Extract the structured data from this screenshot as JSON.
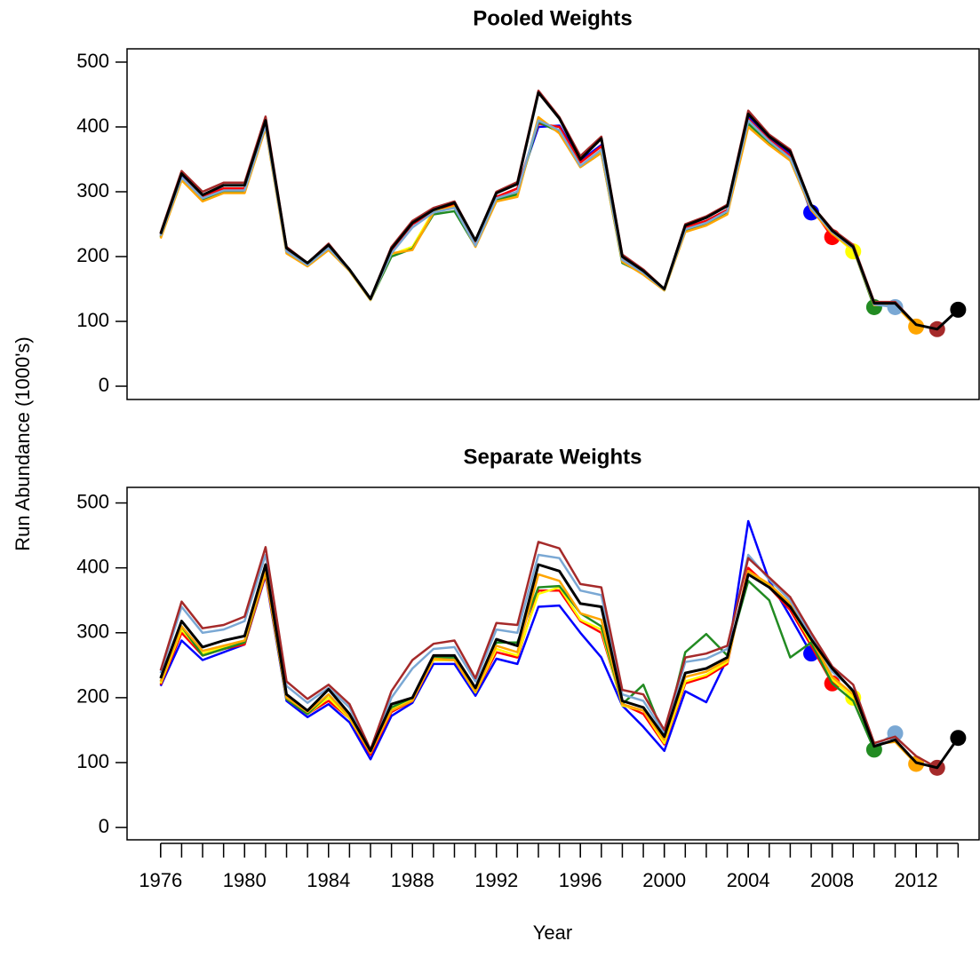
{
  "chart_data": [
    {
      "type": "line",
      "title": "Pooled Weights",
      "ylabel": "Run Abundance (1000's)",
      "x": [
        1976,
        1977,
        1978,
        1979,
        1980,
        1981,
        1982,
        1983,
        1984,
        1985,
        1986,
        1987,
        1988,
        1989,
        1990,
        1991,
        1992,
        1993,
        1994,
        1995,
        1996,
        1997,
        1998,
        1999,
        2000,
        2001,
        2002,
        2003,
        2004,
        2005,
        2006,
        2007,
        2008,
        2009,
        2010,
        2011,
        2012,
        2013,
        2014
      ],
      "xlim": [
        1974.4,
        2015
      ],
      "ylim": [
        -20.5,
        520.5
      ],
      "yticks": [
        0,
        100,
        200,
        300,
        400,
        500
      ],
      "series": [
        {
          "color": "#0000ff",
          "values": [
            232,
            324,
            293,
            305,
            305,
            405,
            210,
            188,
            215,
            179,
            134,
            208,
            250,
            270,
            280,
            220,
            292,
            305,
            400,
            402,
            348,
            372,
            198,
            177,
            149,
            245,
            255,
            272,
            415,
            382,
            358,
            268,
            null,
            null,
            null,
            null,
            null,
            null,
            null
          ]
        },
        {
          "color": "#ff0000",
          "values": [
            232,
            322,
            292,
            305,
            305,
            405,
            210,
            188,
            215,
            179,
            134,
            208,
            250,
            270,
            280,
            220,
            292,
            305,
            405,
            400,
            345,
            370,
            197,
            176,
            149,
            245,
            255,
            272,
            412,
            380,
            355,
            276,
            230,
            null,
            null,
            null,
            null,
            null,
            null
          ]
        },
        {
          "color": "#ffff00",
          "values": [
            230,
            318,
            287,
            300,
            300,
            400,
            207,
            186,
            212,
            178,
            133,
            203,
            215,
            270,
            275,
            217,
            285,
            294,
            412,
            393,
            340,
            362,
            193,
            174,
            148,
            240,
            250,
            268,
            405,
            375,
            350,
            274,
            236,
            208,
            null,
            null,
            null,
            null,
            null
          ]
        },
        {
          "color": "#228b22",
          "values": [
            230,
            320,
            288,
            300,
            300,
            400,
            207,
            186,
            212,
            178,
            133,
            200,
            212,
            265,
            270,
            216,
            288,
            296,
            408,
            392,
            338,
            360,
            190,
            174,
            148,
            240,
            250,
            268,
            405,
            375,
            350,
            274,
            236,
            212,
            122,
            null,
            null,
            null,
            null
          ]
        },
        {
          "color": "#ffa500",
          "values": [
            228,
            318,
            285,
            298,
            298,
            398,
            205,
            185,
            210,
            178,
            133,
            205,
            210,
            268,
            278,
            215,
            285,
            292,
            415,
            390,
            338,
            360,
            192,
            172,
            148,
            238,
            248,
            265,
            400,
            372,
            348,
            272,
            235,
            212,
            125,
            125,
            92,
            null,
            null
          ]
        },
        {
          "color": "#7aa8d4",
          "values": [
            232,
            322,
            290,
            302,
            302,
            402,
            208,
            187,
            213,
            179,
            134,
            205,
            245,
            268,
            275,
            217,
            290,
            300,
            410,
            395,
            340,
            365,
            195,
            175,
            149,
            242,
            252,
            270,
            410,
            378,
            352,
            275,
            238,
            213,
            126,
            122,
            null,
            null,
            null
          ]
        },
        {
          "color": "#a52a2a",
          "values": [
            237,
            332,
            300,
            314,
            314,
            416,
            215,
            190,
            220,
            180,
            135,
            215,
            255,
            275,
            285,
            225,
            300,
            315,
            456,
            415,
            355,
            385,
            203,
            180,
            150,
            250,
            262,
            280,
            425,
            388,
            365,
            280,
            242,
            218,
            130,
            130,
            95,
            88,
            null
          ]
        },
        {
          "color": "#000000",
          "values": [
            235,
            328,
            295,
            310,
            310,
            410,
            213,
            190,
            218,
            180,
            135,
            212,
            252,
            272,
            283,
            225,
            298,
            312,
            453,
            413,
            350,
            382,
            200,
            178,
            150,
            248,
            260,
            278,
            420,
            385,
            362,
            280,
            240,
            215,
            128,
            128,
            95,
            88,
            118
          ]
        }
      ]
    },
    {
      "type": "line",
      "title": "Separate Weights",
      "xlabel": "Year",
      "x": [
        1976,
        1977,
        1978,
        1979,
        1980,
        1981,
        1982,
        1983,
        1984,
        1985,
        1986,
        1987,
        1988,
        1989,
        1990,
        1991,
        1992,
        1993,
        1994,
        1995,
        1996,
        1997,
        1998,
        1999,
        2000,
        2001,
        2002,
        2003,
        2004,
        2005,
        2006,
        2007,
        2008,
        2009,
        2010,
        2011,
        2012,
        2013,
        2014
      ],
      "xlim": [
        1974.4,
        2015
      ],
      "ylim": [
        -19,
        524
      ],
      "yticks": [
        0,
        100,
        200,
        300,
        400,
        500
      ],
      "xticks": [
        1976,
        1980,
        1984,
        1988,
        1992,
        1996,
        2000,
        2004,
        2008,
        2012
      ],
      "series": [
        {
          "color": "#0000ff",
          "values": [
            218,
            288,
            258,
            270,
            282,
            388,
            195,
            170,
            190,
            162,
            105,
            172,
            192,
            252,
            252,
            203,
            260,
            252,
            340,
            342,
            300,
            262,
            188,
            155,
            118,
            210,
            193,
            260,
            472,
            380,
            325,
            268,
            null,
            null,
            null,
            null,
            null,
            null,
            null
          ]
        },
        {
          "color": "#ff0000",
          "values": [
            220,
            300,
            265,
            275,
            282,
            390,
            198,
            175,
            195,
            168,
            112,
            178,
            195,
            258,
            258,
            208,
            270,
            262,
            365,
            365,
            318,
            300,
            190,
            175,
            128,
            222,
            232,
            252,
            400,
            370,
            335,
            280,
            222,
            null,
            null,
            null,
            null,
            null,
            null
          ]
        },
        {
          "color": "#ffff00",
          "values": [
            222,
            305,
            268,
            278,
            285,
            393,
            198,
            175,
            200,
            168,
            115,
            182,
            198,
            258,
            258,
            208,
            275,
            265,
            360,
            370,
            320,
            305,
            188,
            180,
            130,
            225,
            235,
            255,
            395,
            372,
            340,
            285,
            228,
            200,
            null,
            null,
            null,
            null,
            null
          ]
        },
        {
          "color": "#228b22",
          "values": [
            225,
            310,
            265,
            275,
            285,
            395,
            198,
            175,
            205,
            170,
            115,
            185,
            200,
            262,
            262,
            210,
            285,
            285,
            370,
            372,
            330,
            310,
            190,
            220,
            140,
            270,
            298,
            265,
            380,
            350,
            262,
            285,
            222,
            195,
            120,
            null,
            null,
            null,
            null
          ]
        },
        {
          "color": "#ffa500",
          "values": [
            225,
            310,
            272,
            280,
            288,
            395,
            200,
            178,
            205,
            170,
            115,
            180,
            195,
            260,
            258,
            210,
            280,
            270,
            390,
            380,
            330,
            320,
            190,
            180,
            135,
            232,
            240,
            258,
            395,
            375,
            345,
            290,
            232,
            205,
            128,
            132,
            98,
            null,
            null
          ]
        },
        {
          "color": "#7aa8d4",
          "values": [
            238,
            340,
            300,
            305,
            318,
            420,
            218,
            192,
            215,
            185,
            118,
            200,
            245,
            275,
            278,
            225,
            305,
            300,
            420,
            415,
            365,
            358,
            205,
            195,
            145,
            255,
            260,
            275,
            420,
            382,
            350,
            295,
            240,
            212,
            125,
            145,
            null,
            null,
            null
          ]
        },
        {
          "color": "#a52a2a",
          "values": [
            242,
            348,
            307,
            312,
            325,
            432,
            225,
            198,
            220,
            190,
            120,
            210,
            258,
            283,
            288,
            230,
            315,
            312,
            440,
            430,
            375,
            370,
            212,
            205,
            150,
            262,
            268,
            280,
            415,
            385,
            355,
            300,
            248,
            220,
            130,
            140,
            110,
            92,
            null
          ]
        },
        {
          "color": "#000000",
          "values": [
            230,
            318,
            278,
            288,
            295,
            405,
            205,
            180,
            213,
            175,
            118,
            190,
            200,
            265,
            265,
            215,
            290,
            280,
            405,
            395,
            345,
            340,
            195,
            185,
            140,
            238,
            245,
            262,
            390,
            370,
            340,
            290,
            245,
            210,
            125,
            135,
            100,
            92,
            138
          ]
        }
      ]
    }
  ]
}
